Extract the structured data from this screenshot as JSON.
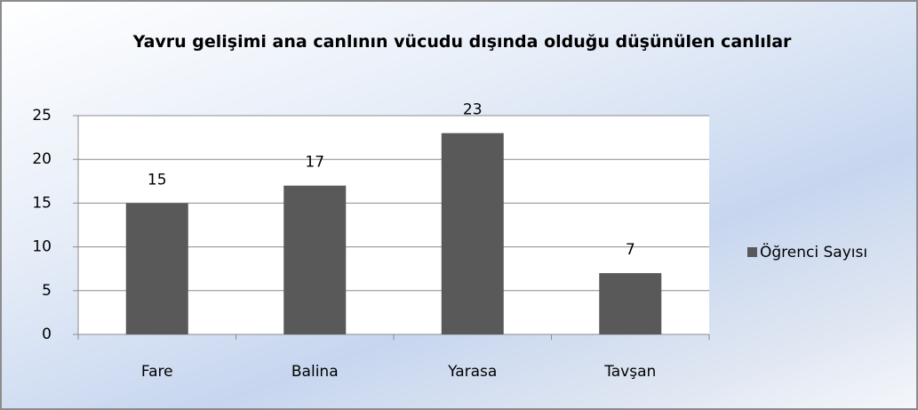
{
  "chart_data": {
    "type": "bar",
    "title": "Yavru gelişimi ana canlının vücudu dışında olduğu düşünülen canlılar",
    "categories": [
      "Fare",
      "Balina",
      "Yarasa",
      "Tavşan"
    ],
    "series": [
      {
        "name": "Öğrenci Sayısı",
        "color": "#595959",
        "values": [
          15,
          17,
          23,
          7
        ]
      }
    ],
    "ylim": [
      0,
      25
    ],
    "yticks": [
      0,
      5,
      10,
      15,
      20,
      25
    ],
    "grid": true,
    "legend": "right"
  }
}
